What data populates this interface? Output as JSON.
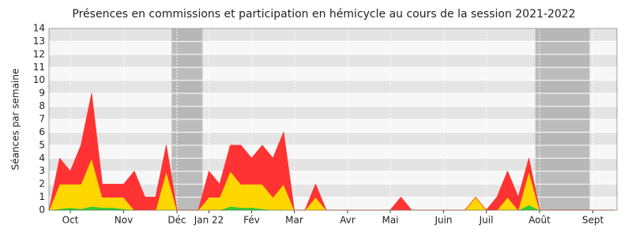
{
  "chart_data": {
    "type": "stacked_area",
    "title": "Présences en commissions et participation en hémicycle au cours de la session 2021-2022",
    "y_label": "Séances par semaine",
    "categories": [
      null,
      null,
      "Oct",
      null,
      null,
      null,
      null,
      "Nov",
      null,
      null,
      null,
      null,
      "Déc",
      null,
      null,
      "Jan 22",
      null,
      null,
      null,
      "Fév",
      null,
      null,
      null,
      "Mar",
      null,
      null,
      null,
      null,
      "Avr",
      null,
      null,
      null,
      "Mai",
      null,
      null,
      null,
      null,
      "Juin",
      null,
      null,
      null,
      "Juil",
      null,
      null,
      null,
      null,
      "Août",
      null,
      null,
      null,
      null,
      "Sept",
      null,
      null
    ],
    "series": [
      {
        "color": "#33cc33",
        "values": [
          0,
          0.1,
          0.2,
          0.1,
          0.3,
          0.2,
          0.2,
          0.1,
          0,
          0,
          0,
          0,
          0,
          0,
          0,
          0,
          0,
          0.3,
          0.2,
          0.2,
          0.1,
          0,
          0,
          0,
          0,
          0,
          0,
          0,
          0,
          0,
          0,
          0,
          0,
          0,
          0,
          0,
          0,
          0,
          0,
          0,
          0,
          0,
          0,
          0,
          0,
          0.4,
          0,
          0,
          0,
          0,
          0,
          0,
          0,
          0
        ]
      },
      {
        "color": "#ffd700",
        "values": [
          0,
          1.9,
          1.8,
          1.9,
          3.7,
          0.8,
          0.8,
          0.9,
          0,
          0,
          0,
          3,
          0,
          0,
          0,
          1,
          1,
          2.7,
          1.8,
          1.8,
          1.9,
          1,
          2,
          0,
          0,
          1,
          0,
          0,
          0,
          0,
          0,
          0,
          0,
          0,
          0,
          0,
          0,
          0,
          0,
          0,
          1,
          0,
          0,
          1,
          0,
          2.6,
          0,
          0,
          0,
          0,
          0,
          0,
          0,
          0
        ]
      },
      {
        "color": "#ff3333",
        "values": [
          0,
          2,
          1,
          3,
          5,
          1,
          1,
          1,
          3,
          1,
          1,
          2,
          0,
          0,
          0,
          2,
          1,
          2,
          3,
          2,
          3,
          3,
          4,
          0,
          0,
          1,
          0,
          0,
          0,
          0,
          0,
          0,
          0,
          1,
          0,
          0,
          0,
          0,
          0,
          0,
          0,
          0,
          1,
          2,
          1,
          1,
          0,
          0,
          0,
          0,
          0,
          0,
          0,
          0
        ]
      }
    ],
    "shaded_ranges": [
      [
        11.5,
        14.4
      ],
      [
        45.6,
        50.7
      ]
    ],
    "ylim": [
      0,
      14
    ],
    "yticks": [
      0,
      1,
      2,
      3,
      4,
      5,
      6,
      7,
      8,
      9,
      10,
      11,
      12,
      13,
      14
    ],
    "grid": true
  }
}
